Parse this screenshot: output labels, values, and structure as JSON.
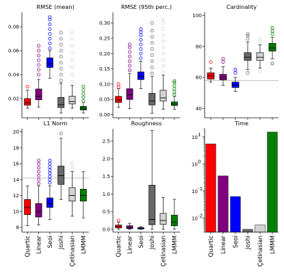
{
  "figure": {
    "methods": [
      "Quartic",
      "Linear",
      "Seoi",
      "Joshi",
      "Çetinasian",
      "LMMM"
    ],
    "colors": [
      "#ff0000",
      "#800080",
      "#0000ff",
      "#696969",
      "#d3d3d3",
      "#008000"
    ]
  },
  "chart_data": [
    {
      "type": "box",
      "title": "RMSE (mean)",
      "ylim": [
        0.004,
        0.092
      ],
      "yticks": [
        0.02,
        0.04,
        0.06,
        0.08
      ],
      "ytick_labels": [
        "0.02",
        "0.04",
        "0.06",
        "0.08"
      ],
      "boxes": [
        {
          "name": "Quartic",
          "whislo": 0.012,
          "q1": 0.0145,
          "med": 0.0165,
          "q3": 0.02,
          "whishi": 0.027,
          "fliers": [
            0.03
          ]
        },
        {
          "name": "Linear",
          "whislo": 0.013,
          "q1": 0.019,
          "med": 0.022,
          "q3": 0.028,
          "whishi": 0.036,
          "fliers": [
            0.04,
            0.044,
            0.048,
            0.052,
            0.056,
            0.06,
            0.064
          ]
        },
        {
          "name": "Seoi",
          "whislo": 0.037,
          "q1": 0.046,
          "med": 0.049,
          "q3": 0.054,
          "whishi": 0.06,
          "fliers": [
            0.062,
            0.066,
            0.07,
            0.074,
            0.078,
            0.082,
            0.086,
            0.088
          ]
        },
        {
          "name": "Joshi",
          "whislo": 0.008,
          "q1": 0.0125,
          "med": 0.015,
          "q3": 0.021,
          "whishi": 0.033,
          "fliers": [
            0.035,
            0.04,
            0.045,
            0.05,
            0.055,
            0.06,
            0.065,
            0.07,
            0.075
          ]
        },
        {
          "name": "Çetinasian",
          "whislo": 0.012,
          "q1": 0.0155,
          "med": 0.0175,
          "q3": 0.022,
          "whishi": 0.031,
          "fliers": [
            0.034,
            0.04,
            0.046,
            0.052,
            0.058,
            0.064,
            0.07,
            0.075
          ]
        },
        {
          "name": "LMMM",
          "whislo": 0.008,
          "q1": 0.0105,
          "med": 0.012,
          "q3": 0.0135,
          "whishi": 0.017,
          "fliers": [
            0.018,
            0.021,
            0.024,
            0.027,
            0.03
          ]
        }
      ]
    },
    {
      "type": "box",
      "title": "RMSE (95th perc.)",
      "ylim": [
        -0.01,
        0.335
      ],
      "yticks": [
        0.0,
        0.05,
        0.1,
        0.15,
        0.2,
        0.25,
        0.3
      ],
      "ytick_labels": [
        "0.00",
        "0.05",
        "0.10",
        "0.15",
        "0.20",
        "0.25",
        "0.30"
      ],
      "boxes": [
        {
          "name": "Quartic",
          "whislo": 0.025,
          "q1": 0.04,
          "med": 0.048,
          "q3": 0.06,
          "whishi": 0.085,
          "fliers": [
            0.09,
            0.1
          ]
        },
        {
          "name": "Linear",
          "whislo": 0.02,
          "q1": 0.05,
          "med": 0.065,
          "q3": 0.085,
          "whishi": 0.135,
          "fliers": [
            0.145,
            0.16,
            0.175,
            0.19,
            0.205,
            0.22,
            0.23
          ]
        },
        {
          "name": "Seoi",
          "whislo": 0.085,
          "q1": 0.115,
          "med": 0.125,
          "q3": 0.14,
          "whishi": 0.175,
          "fliers": [
            0.185,
            0.2,
            0.215,
            0.23,
            0.245,
            0.26,
            0.27,
            0.28
          ]
        },
        {
          "name": "Joshi",
          "whislo": 0.005,
          "q1": 0.032,
          "med": 0.045,
          "q3": 0.07,
          "whishi": 0.125,
          "fliers": [
            0.135,
            0.155,
            0.175,
            0.195,
            0.215,
            0.235,
            0.255,
            0.275,
            0.3
          ]
        },
        {
          "name": "Çetinasian",
          "whislo": 0.018,
          "q1": 0.045,
          "med": 0.055,
          "q3": 0.08,
          "whishi": 0.13,
          "fliers": [
            0.14,
            0.16,
            0.18,
            0.2,
            0.22,
            0.24,
            0.26,
            0.28,
            0.3,
            0.31
          ]
        },
        {
          "name": "LMMM",
          "whislo": 0.018,
          "q1": 0.03,
          "med": 0.035,
          "q3": 0.042,
          "whishi": 0.06,
          "fliers": [
            0.065,
            0.075,
            0.085,
            0.095,
            0.105,
            0.11
          ]
        }
      ]
    },
    {
      "type": "box",
      "title": "Cardinality",
      "ylim": [
        34,
        102
      ],
      "yticks": [
        40,
        60,
        80,
        100
      ],
      "ytick_labels": [
        "40",
        "60",
        "80",
        "100"
      ],
      "hline": 58,
      "boxes": [
        {
          "name": "Quartic",
          "whislo": 57,
          "q1": 59,
          "med": 61,
          "q3": 63,
          "whishi": 66,
          "fliers": [
            70
          ]
        },
        {
          "name": "Linear",
          "whislo": 55,
          "q1": 58.5,
          "med": 60,
          "q3": 62,
          "whishi": 67,
          "fliers": [
            70,
            72
          ]
        },
        {
          "name": "Seoi",
          "whislo": 51,
          "q1": 53.5,
          "med": 55,
          "q3": 57,
          "whishi": 60,
          "fliers": [
            63,
            65
          ]
        },
        {
          "name": "Joshi",
          "whislo": 65,
          "q1": 71,
          "med": 73,
          "q3": 76,
          "whishi": 83,
          "fliers": [
            63,
            85,
            87,
            88
          ]
        },
        {
          "name": "Çetinasian",
          "whislo": 66,
          "q1": 71,
          "med": 73,
          "q3": 76,
          "whishi": 81,
          "fliers": [
            64,
            83,
            85
          ]
        },
        {
          "name": "LMMM",
          "whislo": 72,
          "q1": 77,
          "med": 79,
          "q3": 82,
          "whishi": 86,
          "fliers": [
            69,
            88,
            90,
            92
          ]
        }
      ]
    },
    {
      "type": "box",
      "title": "L1 Norm",
      "ylim": [
        7.4,
        20.4
      ],
      "yticks": [
        8,
        10,
        12,
        14,
        16,
        18,
        20
      ],
      "ytick_labels": [
        "8",
        "10",
        "12",
        "14",
        "16",
        "18",
        "20"
      ],
      "hline": 14.2,
      "boxes": [
        {
          "name": "Quartic",
          "whislo": 8.2,
          "q1": 9.6,
          "med": 10.5,
          "q3": 11.5,
          "whishi": 13.2,
          "fliers": []
        },
        {
          "name": "Linear",
          "whislo": 8.3,
          "q1": 9.3,
          "med": 10,
          "q3": 11,
          "whishi": 13.2,
          "fliers": [
            13.5,
            14,
            14.5,
            15,
            15.5,
            16,
            16.4
          ]
        },
        {
          "name": "Seoi",
          "whislo": 9,
          "q1": 10.5,
          "med": 11,
          "q3": 11.7,
          "whishi": 13.2,
          "fliers": [
            13.6,
            14,
            14.4,
            14.8,
            15.2,
            15.6,
            16,
            16.4
          ]
        },
        {
          "name": "Joshi",
          "whislo": 11.5,
          "q1": 13.4,
          "med": 14.5,
          "q3": 15.7,
          "whishi": 19.2,
          "fliers": [
            19.8
          ]
        },
        {
          "name": "Çetinasian",
          "whislo": 9.4,
          "q1": 11.3,
          "med": 12,
          "q3": 13,
          "whishi": 15,
          "fliers": [
            15.3,
            15.7,
            16.1
          ]
        },
        {
          "name": "LMMM",
          "whislo": 9.2,
          "q1": 11.3,
          "med": 12,
          "q3": 12.8,
          "whishi": 15,
          "fliers": []
        }
      ]
    },
    {
      "type": "box",
      "title": "Roughness",
      "ylim": [
        -0.08,
        2.85
      ],
      "yticks": [
        0.0,
        0.5,
        1.0,
        1.5,
        2.0,
        2.5
      ],
      "ytick_labels": [
        "0.0",
        "0.5",
        "1.0",
        "1.5",
        "2.0",
        "2.5"
      ],
      "boxes": [
        {
          "name": "Quartic",
          "whislo": 0.0,
          "q1": 0.04,
          "med": 0.08,
          "q3": 0.12,
          "whishi": 0.2,
          "fliers": [
            0.25
          ]
        },
        {
          "name": "Linear",
          "whislo": 0.0,
          "q1": 0.02,
          "med": 0.05,
          "q3": 0.1,
          "whishi": 0.17,
          "fliers": []
        },
        {
          "name": "Seoi",
          "whislo": 0.0,
          "q1": 0.01,
          "med": 0.03,
          "q3": 0.05,
          "whishi": 0.08,
          "fliers": []
        },
        {
          "name": "Joshi",
          "whislo": 0.0,
          "q1": 0.13,
          "med": 0.28,
          "q3": 1.25,
          "whishi": 2.8,
          "fliers": []
        },
        {
          "name": "Çetinasian",
          "whislo": 0.0,
          "q1": 0.14,
          "med": 0.25,
          "q3": 0.45,
          "whishi": 0.9,
          "fliers": []
        },
        {
          "name": "LMMM",
          "whislo": 0.0,
          "q1": 0.1,
          "med": 0.2,
          "q3": 0.4,
          "whishi": 0.85,
          "fliers": []
        }
      ]
    },
    {
      "type": "bar",
      "title": "Time",
      "yscale": "log",
      "ylim": [
        0.003,
        20
      ],
      "yticks": [
        0.01,
        0.1,
        1,
        10
      ],
      "ytick_labels": [
        "10^-2",
        "10^-1",
        "10^0",
        "10^1"
      ],
      "categories": [
        "Quartic",
        "Linear",
        "Seoi",
        "Joshi",
        "Çetinasian",
        "LMMM"
      ],
      "values": [
        5.5,
        0.36,
        0.062,
        0.0038,
        0.0055,
        15
      ]
    }
  ]
}
